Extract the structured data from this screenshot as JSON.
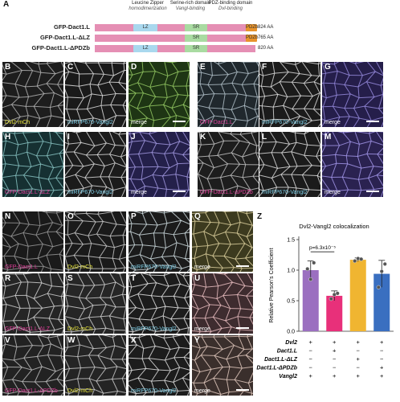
{
  "panel_a": {
    "letter": "A",
    "domains": [
      {
        "title": "Leucine Zipper",
        "sub": "homodimerization"
      },
      {
        "title": "Serine-rich domain",
        "sub": "Vangl-binding"
      },
      {
        "title": "PDZ-binding domain",
        "sub": "Dvl-binding"
      }
    ],
    "constructs": [
      {
        "name": "GFP-Dact1.L",
        "lz": "LZ",
        "sr": "SR",
        "pdz": "PDZb",
        "size": "824 AA"
      },
      {
        "name": "GFP-Dact1.L-ΔLZ",
        "lz": "",
        "sr": "SR",
        "pdz": "PDZb",
        "size": "765 AA"
      },
      {
        "name": "GFP-Dact1.L-ΔPDZb",
        "lz": "LZ",
        "sr": "SR",
        "pdz": "",
        "size": "820 AA"
      }
    ],
    "colors": {
      "gfp": "#e58fb4",
      "lz": "#a9d8ee",
      "sr": "#a9dba1",
      "pdz": "#e8932b"
    }
  },
  "panels": [
    {
      "letter": "B",
      "caption": "Dvl2-mCh",
      "cap_color": "#e8e53a"
    },
    {
      "letter": "C",
      "caption": "miRFP670-Vangl2",
      "cap_color": "#7fd0e8"
    },
    {
      "letter": "D",
      "caption": "merge",
      "cap_color": "#ffffff"
    },
    {
      "letter": "E",
      "caption": "GFP-Dact1.L",
      "cap_color": "#e0409a"
    },
    {
      "letter": "F",
      "caption": "miRFP670-Vangl2",
      "cap_color": "#7fd0e8"
    },
    {
      "letter": "G",
      "caption": "merge",
      "cap_color": "#ffffff"
    },
    {
      "letter": "H",
      "caption": "GFP-Dact1.L-ΔLZ",
      "cap_color": "#e0409a"
    },
    {
      "letter": "I",
      "caption": "miRFP670-Vangl2",
      "cap_color": "#7fd0e8"
    },
    {
      "letter": "J",
      "caption": "merge",
      "cap_color": "#ffffff"
    },
    {
      "letter": "K",
      "caption": "GFP-Dact1.L-ΔPDZb",
      "cap_color": "#e0409a"
    },
    {
      "letter": "L",
      "caption": "miRFP670-Vangl2",
      "cap_color": "#7fd0e8"
    },
    {
      "letter": "M",
      "caption": "merge",
      "cap_color": "#ffffff"
    },
    {
      "letter": "N",
      "caption": "GFP-Dact1.L",
      "cap_color": "#e0409a"
    },
    {
      "letter": "O",
      "caption": "Dvl2-mCh",
      "cap_color": "#e8e53a"
    },
    {
      "letter": "P",
      "caption": "miRFP670-Vangl2",
      "cap_color": "#7fd0e8"
    },
    {
      "letter": "Q",
      "caption": "merge",
      "cap_color": "#ffffff"
    },
    {
      "letter": "R",
      "caption": "GFP-Dact1.L-ΔLZ",
      "cap_color": "#e0409a"
    },
    {
      "letter": "S",
      "caption": "Dvl2-mCh",
      "cap_color": "#e8e53a"
    },
    {
      "letter": "T",
      "caption": "miRFP670-Vangl2",
      "cap_color": "#7fd0e8"
    },
    {
      "letter": "U",
      "caption": "merge",
      "cap_color": "#ffffff"
    },
    {
      "letter": "V",
      "caption": "GFP-Dact1.L-ΔPDZb",
      "cap_color": "#e0409a"
    },
    {
      "letter": "W",
      "caption": "Dvl2-mCh",
      "cap_color": "#e8e53a"
    },
    {
      "letter": "X",
      "caption": "miRFP670-Vangl2",
      "cap_color": "#7fd0e8"
    },
    {
      "letter": "Y",
      "caption": "merge",
      "cap_color": "#ffffff"
    }
  ],
  "chart_data": {
    "letter": "Z",
    "type": "bar",
    "title": "Dvl2-Vangl2 colocalization",
    "ylabel": "Relative Pearson's Coefficient",
    "ylim": [
      0,
      1.5
    ],
    "yticks": [
      "0.0",
      "0.5",
      "1.0",
      "1.5"
    ],
    "values": [
      1.0,
      0.58,
      1.17,
      0.94
    ],
    "errors": [
      0.15,
      0.08,
      0.03,
      0.22
    ],
    "points": [
      [
        1.02,
        0.85,
        1.12
      ],
      [
        0.53,
        0.6,
        0.62
      ],
      [
        1.15,
        1.19,
        1.18
      ],
      [
        0.72,
        0.98,
        1.1
      ]
    ],
    "colors": [
      "#9b6fc0",
      "#e8307a",
      "#f0b531",
      "#3a6fc0"
    ],
    "annotation": "p=6.3x10⁻⁵",
    "condition_rows": [
      {
        "label": "Dvl2",
        "marks": [
          "+",
          "+",
          "+",
          "+"
        ]
      },
      {
        "label": "Dact1.L",
        "marks": [
          "−",
          "+",
          "−",
          "−"
        ]
      },
      {
        "label": "Dact1.L-ΔLZ",
        "marks": [
          "−",
          "−",
          "+",
          "−"
        ]
      },
      {
        "label": "Dact1.L-ΔPDZb",
        "marks": [
          "−",
          "−",
          "−",
          "+"
        ]
      },
      {
        "label": "Vangl2",
        "marks": [
          "+",
          "+",
          "+",
          "+"
        ]
      }
    ]
  }
}
